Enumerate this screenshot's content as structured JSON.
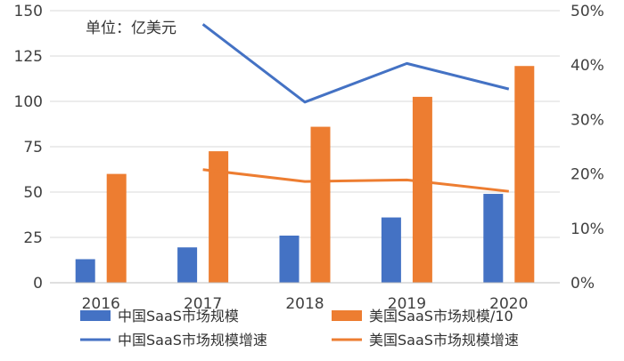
{
  "unit_label": "单位：亿美元",
  "colors": {
    "china": "#4472C4",
    "us": "#ED7D31",
    "axis": "#BFBFBF",
    "grid": "#D9D9D9"
  },
  "chart_data": {
    "type": "bar",
    "categories": [
      "2016",
      "2017",
      "2018",
      "2019",
      "2020"
    ],
    "y_left": {
      "min": 0,
      "max": 150,
      "ticks": [
        "0",
        "25",
        "50",
        "75",
        "100",
        "125",
        "150"
      ]
    },
    "y_right": {
      "min": 0,
      "max": 50,
      "ticks": [
        "0%",
        "10%",
        "20%",
        "30%",
        "40%",
        "50%"
      ]
    },
    "grid": true,
    "legend_position": "bottom",
    "series": [
      {
        "name": "中国SaaS市场规模",
        "kind": "bar",
        "axis": "left",
        "color": "#4472C4",
        "values": [
          13,
          19.5,
          26,
          36,
          49
        ]
      },
      {
        "name": "美国SaaS市场规模/10",
        "kind": "bar",
        "axis": "left",
        "color": "#ED7D31",
        "values": [
          60,
          72.5,
          86,
          102.5,
          119.5
        ]
      },
      {
        "name": "中国SaaS市场规模增速",
        "kind": "line",
        "axis": "right",
        "color": "#4472C4",
        "values": [
          null,
          47.5,
          33.2,
          40.3,
          35.6
        ]
      },
      {
        "name": "美国SaaS市场规模增速",
        "kind": "line",
        "axis": "right",
        "color": "#ED7D31",
        "values": [
          null,
          20.8,
          18.6,
          18.9,
          16.8
        ]
      }
    ]
  }
}
